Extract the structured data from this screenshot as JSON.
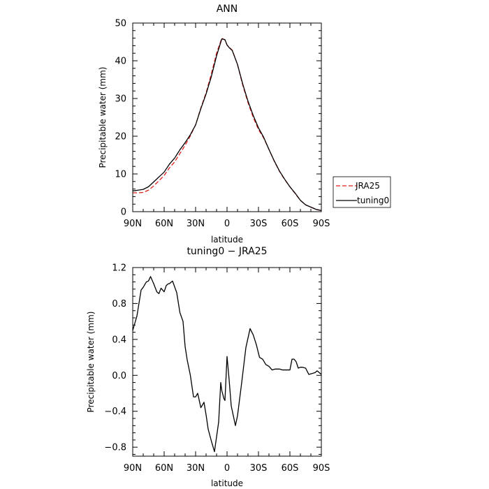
{
  "chart_data": [
    {
      "type": "line",
      "title": "ANN",
      "xlabel": "latitude",
      "ylabel": "Precipitable water  (mm)",
      "x_ticks": [
        {
          "value": 90,
          "label": "90N"
        },
        {
          "value": 60,
          "label": "60N"
        },
        {
          "value": 30,
          "label": "30N"
        },
        {
          "value": 0,
          "label": "0"
        },
        {
          "value": -30,
          "label": "30S"
        },
        {
          "value": -60,
          "label": "60S"
        },
        {
          "value": -90,
          "label": "90S"
        }
      ],
      "y_ticks": [
        {
          "value": 0,
          "label": "0"
        },
        {
          "value": 10,
          "label": "10"
        },
        {
          "value": 20,
          "label": "20"
        },
        {
          "value": 30,
          "label": "30"
        },
        {
          "value": 40,
          "label": "40"
        },
        {
          "value": 50,
          "label": "50"
        }
      ],
      "xlim": [
        90,
        -90
      ],
      "ylim": [
        0,
        50
      ],
      "legend_position": "right",
      "series": [
        {
          "name": "JRA25",
          "color": "#e0201b",
          "dash": "dashed",
          "x": [
            90,
            85,
            80,
            75,
            70,
            65,
            60,
            55,
            50,
            45,
            40,
            35,
            30,
            25,
            20,
            15,
            10,
            5,
            2,
            0,
            -2,
            -5,
            -10,
            -15,
            -20,
            -25,
            -30,
            -35,
            -40,
            -45,
            -50,
            -55,
            -60,
            -65,
            -70,
            -75,
            -80,
            -85,
            -90
          ],
          "y": [
            5.0,
            5.0,
            5.1,
            5.7,
            6.8,
            8.2,
            9.6,
            11.6,
            13.2,
            15.4,
            17.6,
            20.1,
            23.0,
            27.5,
            31.5,
            36.5,
            42.0,
            46.0,
            45.5,
            44.2,
            43.6,
            42.8,
            39.0,
            33.5,
            28.9,
            25.0,
            21.8,
            19.5,
            16.5,
            13.4,
            10.7,
            8.5,
            6.6,
            4.8,
            3.0,
            1.8,
            1.2,
            0.6,
            0.3
          ]
        },
        {
          "name": "tuning0",
          "color": "#000000",
          "dash": "solid",
          "x": [
            90,
            85,
            80,
            75,
            70,
            65,
            60,
            55,
            50,
            45,
            40,
            35,
            30,
            25,
            20,
            15,
            10,
            5,
            2,
            0,
            -2,
            -5,
            -10,
            -15,
            -20,
            -25,
            -30,
            -35,
            -40,
            -45,
            -50,
            -55,
            -60,
            -65,
            -70,
            -75,
            -80,
            -85,
            -90
          ],
          "y": [
            5.5,
            5.7,
            5.9,
            6.6,
            7.9,
            9.2,
            10.5,
            12.6,
            14.2,
            16.4,
            18.3,
            20.4,
            23.0,
            27.3,
            31.2,
            35.8,
            41.3,
            45.8,
            45.6,
            44.2,
            43.5,
            42.7,
            39.0,
            33.8,
            29.3,
            25.5,
            22.2,
            19.7,
            16.5,
            13.5,
            10.8,
            8.6,
            6.6,
            4.9,
            3.0,
            1.8,
            1.2,
            0.6,
            0.3
          ]
        }
      ]
    },
    {
      "type": "line",
      "title": "tuning0 − JRA25",
      "xlabel": "latitude",
      "ylabel": "Precipitable water  (mm)",
      "x_ticks": [
        {
          "value": 90,
          "label": "90N"
        },
        {
          "value": 60,
          "label": "60N"
        },
        {
          "value": 30,
          "label": "30N"
        },
        {
          "value": 0,
          "label": "0"
        },
        {
          "value": -30,
          "label": "30S"
        },
        {
          "value": -60,
          "label": "60S"
        },
        {
          "value": -90,
          "label": "90S"
        }
      ],
      "y_ticks": [
        {
          "value": -0.8,
          "label": "−0.8"
        },
        {
          "value": -0.4,
          "label": "−0.4"
        },
        {
          "value": 0.0,
          "label": "0.0"
        },
        {
          "value": 0.4,
          "label": "0.4"
        },
        {
          "value": 0.8,
          "label": "0.8"
        },
        {
          "value": 1.2,
          "label": "1.2"
        }
      ],
      "xlim": [
        90,
        -90
      ],
      "ylim": [
        -0.9,
        1.2
      ],
      "series": [
        {
          "color": "#000000",
          "dash": "solid",
          "x": [
            90,
            86,
            82,
            80,
            77,
            75,
            73,
            70,
            67,
            65,
            63,
            60,
            58,
            56,
            55,
            52,
            48,
            45,
            42,
            40,
            38,
            35,
            32,
            30,
            28,
            25,
            22,
            20,
            18,
            15,
            12,
            8,
            6,
            5,
            3,
            2,
            0,
            -2,
            -4,
            -8,
            -10,
            -14,
            -18,
            -22,
            -25,
            -28,
            -31,
            -34,
            -37,
            -40,
            -43,
            -46,
            -48,
            -50,
            -53,
            -56,
            -60,
            -62,
            -64,
            -66,
            -68,
            -70,
            -72,
            -75,
            -78,
            -81,
            -84,
            -86,
            -88,
            -90
          ],
          "y": [
            0.5,
            0.66,
            0.95,
            0.98,
            1.04,
            1.05,
            1.1,
            1.02,
            0.93,
            0.91,
            0.97,
            0.93,
            1.0,
            1.02,
            1.02,
            1.05,
            0.92,
            0.7,
            0.6,
            0.32,
            0.17,
            0.0,
            -0.24,
            -0.24,
            -0.2,
            -0.36,
            -0.3,
            -0.44,
            -0.6,
            -0.73,
            -0.85,
            -0.52,
            -0.08,
            -0.17,
            -0.26,
            -0.28,
            0.21,
            -0.05,
            -0.34,
            -0.56,
            -0.45,
            -0.08,
            0.31,
            0.52,
            0.45,
            0.34,
            0.2,
            0.18,
            0.12,
            0.1,
            0.06,
            0.07,
            0.07,
            0.07,
            0.06,
            0.06,
            0.06,
            0.18,
            0.18,
            0.15,
            0.08,
            0.09,
            0.09,
            0.08,
            0.01,
            0.02,
            0.03,
            0.05,
            0.03,
            0.01
          ]
        }
      ]
    }
  ]
}
